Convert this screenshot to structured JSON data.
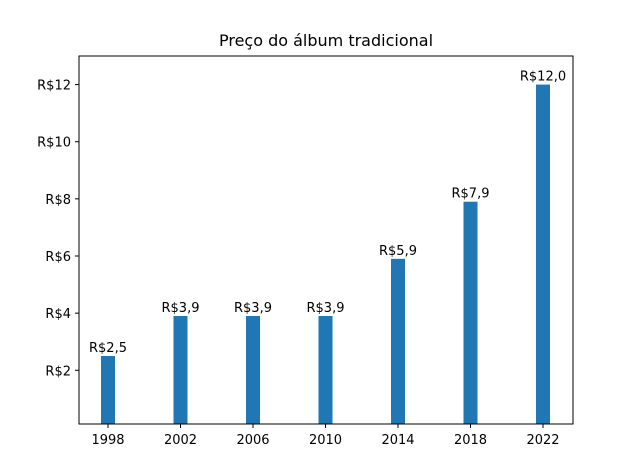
{
  "chart_data": {
    "type": "bar",
    "title": "Preço do álbum tradicional",
    "xlabel": "",
    "ylabel": "",
    "categories": [
      "1998",
      "2002",
      "2006",
      "2010",
      "2014",
      "2018",
      "2022"
    ],
    "values": [
      2.5,
      3.9,
      3.9,
      3.9,
      5.9,
      7.9,
      12.0
    ],
    "data_labels": [
      "R$2,5",
      "R$3,9",
      "R$3,9",
      "R$3,9",
      "R$5,9",
      "R$7,9",
      "R$12,0"
    ],
    "yticks": [
      2,
      4,
      6,
      8,
      10,
      12
    ],
    "ytick_labels": [
      "R$2",
      "R$4",
      "R$6",
      "R$8",
      "R$10",
      "R$12"
    ],
    "ylim": [
      0.12,
      13.0
    ],
    "grid": false,
    "bar_color": "#1f77b4"
  }
}
